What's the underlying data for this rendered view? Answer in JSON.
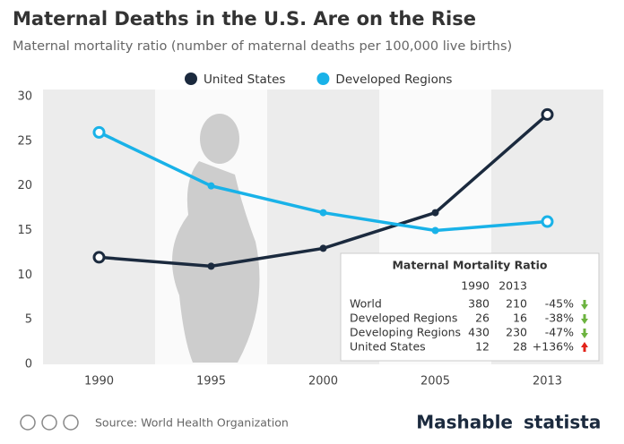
{
  "chart_data": {
    "type": "line",
    "title": "Maternal Deaths in the U.S. Are on the Rise",
    "subtitle": "Maternal mortality ratio (number of maternal deaths per 100,000 live births)",
    "categories": [
      "1990",
      "1995",
      "2000",
      "2005",
      "2013"
    ],
    "series": [
      {
        "name": "United States",
        "color": "#1b2a3e",
        "values": [
          12,
          11,
          13,
          17,
          28
        ]
      },
      {
        "name": "Developed Regions",
        "color": "#19b2e8",
        "values": [
          26,
          20,
          17,
          15,
          16
        ]
      }
    ],
    "ylim": [
      0,
      30
    ],
    "yticks": [
      0,
      5,
      10,
      15,
      20,
      25,
      30
    ],
    "grid": false,
    "legend": "top",
    "source": "Source: World Health Organization"
  },
  "table": {
    "title": "Maternal Mortality Ratio",
    "columns": [
      "1990",
      "2013"
    ],
    "rows": [
      [
        "World",
        380,
        210,
        "-45%"
      ],
      [
        "Developed Regions",
        26,
        16,
        "-38%"
      ],
      [
        "Developing Regions",
        430,
        230,
        "-47%"
      ],
      [
        "United States",
        12,
        28,
        "+136%"
      ]
    ]
  },
  "branding": [
    "Mashable",
    "statista"
  ]
}
